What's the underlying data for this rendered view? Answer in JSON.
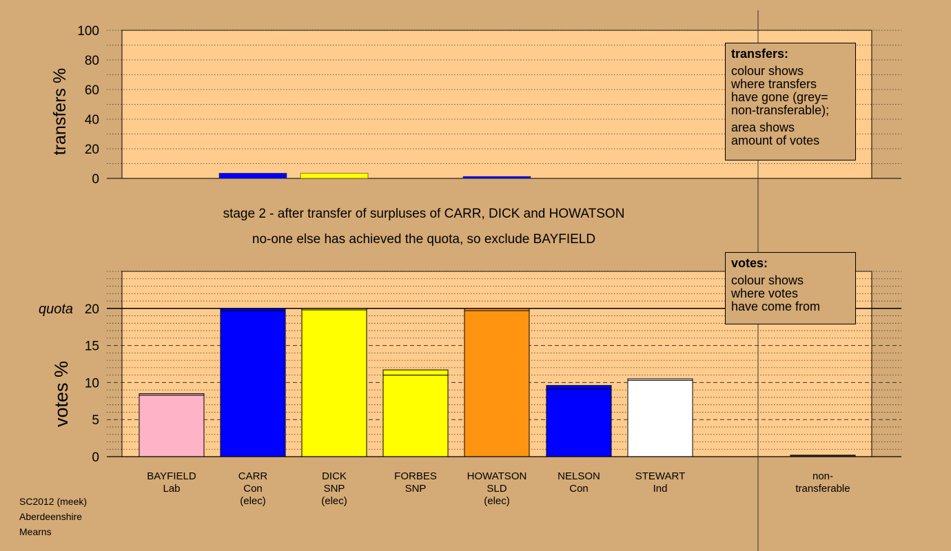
{
  "stage_text": [
    "stage 2 - after transfer of surpluses of CARR, DICK and HOWATSON",
    "no-one else has achieved the quota, so exclude BAYFIELD"
  ],
  "legend_transfers": {
    "title": "transfers:",
    "lines": [
      "colour shows\nwhere transfers\nhave gone (grey=\nnon-transferable);",
      "area shows\namount of votes"
    ]
  },
  "legend_votes": {
    "title": "votes:",
    "lines": [
      "colour shows\nwhere votes\nhave come from"
    ]
  },
  "footer": [
    "SC2012 (meek)",
    "Aberdeenshire",
    "Mearns"
  ],
  "colors": {
    "background": "#d4aa76",
    "plot_bg": "#ffcc8d",
    "Lab": "#ffb3c6",
    "Con": "#0000ff",
    "SNP": "#ffff00",
    "SLD": "#ff9410",
    "Ind": "#ffffff"
  },
  "chart_data": [
    {
      "type": "bar",
      "ylabel": "transfers %",
      "ylim": [
        0,
        100
      ],
      "yticks": [
        0,
        20,
        40,
        60,
        80,
        100
      ],
      "grid": true,
      "categories": [
        "BAYFIELD",
        "CARR",
        "DICK",
        "FORBES",
        "HOWATSON",
        "NELSON",
        "STEWART"
      ],
      "values": [
        0,
        3.5,
        3.5,
        0,
        1.3,
        0,
        0
      ],
      "bar_colors": [
        "#ffb3c6",
        "#0000ff",
        "#ffff00",
        "#ffff00",
        "#0000ff",
        "#0000ff",
        "#ffffff"
      ]
    },
    {
      "type": "bar",
      "ylabel": "votes %",
      "ylim": [
        0,
        25
      ],
      "yticks": [
        0,
        5,
        10,
        15,
        20
      ],
      "quota": 20,
      "quota_label": "quota",
      "grid": true,
      "candidates": [
        {
          "name": "BAYFIELD",
          "party": "Lab",
          "status": "",
          "value": 8.5,
          "added": 0.2,
          "color": "#ffb3c6"
        },
        {
          "name": "CARR",
          "party": "Con",
          "status": "(elec)",
          "value": 20.0,
          "added": 0.3,
          "color": "#0000ff"
        },
        {
          "name": "DICK",
          "party": "SNP",
          "status": "(elec)",
          "value": 20.0,
          "added": 0.2,
          "color": "#ffff00"
        },
        {
          "name": "FORBES",
          "party": "SNP",
          "status": "",
          "value": 11.7,
          "added": 0.7,
          "color": "#ffff00"
        },
        {
          "name": "HOWATSON",
          "party": "SLD",
          "status": "(elec)",
          "value": 20.0,
          "added": 0.3,
          "color": "#ff9410"
        },
        {
          "name": "NELSON",
          "party": "Con",
          "status": "",
          "value": 9.6,
          "added": 0.5,
          "color": "#0000ff"
        },
        {
          "name": "STEWART",
          "party": "Ind",
          "status": "",
          "value": 10.5,
          "added": 0.2,
          "color": "#ffffff"
        }
      ],
      "nontransferable": {
        "label": "non-\ntransferable",
        "value": 0.2
      }
    }
  ]
}
